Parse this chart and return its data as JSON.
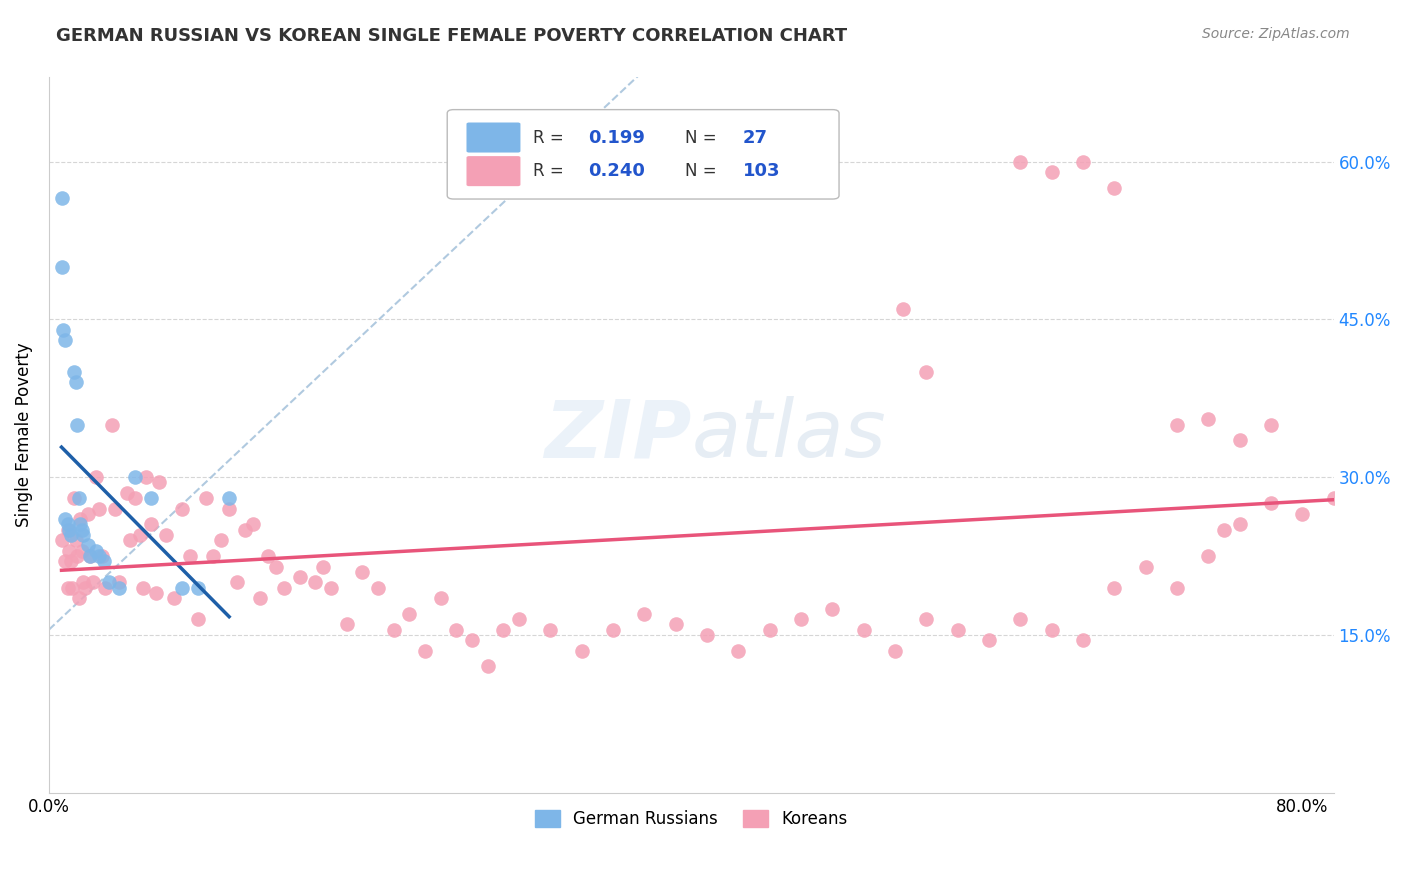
{
  "title": "GERMAN RUSSIAN VS KOREAN SINGLE FEMALE POVERTY CORRELATION CHART",
  "source": "Source: ZipAtlas.com",
  "ylabel": "Single Female Poverty",
  "xlim": [
    0.0,
    0.82
  ],
  "ylim": [
    0.0,
    0.68
  ],
  "yticks": [
    0.15,
    0.3,
    0.45,
    0.6
  ],
  "ytick_labels": [
    "15.0%",
    "30.0%",
    "45.0%",
    "60.0%"
  ],
  "watermark_zip": "ZIP",
  "watermark_atlas": "atlas",
  "blue_color": "#7EB6E8",
  "pink_color": "#F4A0B5",
  "blue_line_color": "#1E5FA8",
  "pink_line_color": "#E8547A",
  "dashed_line_color": "#A8C4DC",
  "legend_r1": "0.199",
  "legend_n1": "27",
  "legend_r2": "0.240",
  "legend_n2": "103",
  "german_russian_x": [
    0.008,
    0.008,
    0.009,
    0.01,
    0.01,
    0.012,
    0.013,
    0.014,
    0.016,
    0.017,
    0.018,
    0.019,
    0.02,
    0.021,
    0.022,
    0.025,
    0.026,
    0.03,
    0.032,
    0.035,
    0.038,
    0.045,
    0.055,
    0.065,
    0.085,
    0.095,
    0.115
  ],
  "german_russian_y": [
    0.565,
    0.5,
    0.44,
    0.43,
    0.26,
    0.255,
    0.25,
    0.245,
    0.4,
    0.39,
    0.35,
    0.28,
    0.255,
    0.25,
    0.245,
    0.235,
    0.225,
    0.23,
    0.225,
    0.22,
    0.2,
    0.195,
    0.3,
    0.28,
    0.195,
    0.195,
    0.28
  ],
  "korean_x": [
    0.008,
    0.01,
    0.012,
    0.012,
    0.013,
    0.014,
    0.015,
    0.016,
    0.017,
    0.018,
    0.019,
    0.02,
    0.021,
    0.022,
    0.023,
    0.025,
    0.026,
    0.028,
    0.03,
    0.032,
    0.034,
    0.036,
    0.04,
    0.042,
    0.045,
    0.05,
    0.052,
    0.055,
    0.058,
    0.06,
    0.062,
    0.065,
    0.068,
    0.07,
    0.075,
    0.08,
    0.085,
    0.09,
    0.095,
    0.1,
    0.105,
    0.11,
    0.115,
    0.12,
    0.125,
    0.13,
    0.135,
    0.14,
    0.145,
    0.15,
    0.16,
    0.17,
    0.175,
    0.18,
    0.19,
    0.2,
    0.21,
    0.22,
    0.23,
    0.24,
    0.25,
    0.26,
    0.27,
    0.28,
    0.29,
    0.3,
    0.32,
    0.34,
    0.36,
    0.38,
    0.4,
    0.42,
    0.44,
    0.46,
    0.48,
    0.5,
    0.52,
    0.54,
    0.56,
    0.58,
    0.6,
    0.62,
    0.64,
    0.66,
    0.68,
    0.7,
    0.72,
    0.74,
    0.76,
    0.78,
    0.545,
    0.56,
    0.62,
    0.64,
    0.66,
    0.68,
    0.72,
    0.74,
    0.76,
    0.78,
    0.8,
    0.82,
    0.75
  ],
  "korean_y": [
    0.24,
    0.22,
    0.25,
    0.195,
    0.23,
    0.22,
    0.195,
    0.28,
    0.24,
    0.225,
    0.185,
    0.26,
    0.23,
    0.2,
    0.195,
    0.265,
    0.225,
    0.2,
    0.3,
    0.27,
    0.225,
    0.195,
    0.35,
    0.27,
    0.2,
    0.285,
    0.24,
    0.28,
    0.245,
    0.195,
    0.3,
    0.255,
    0.19,
    0.295,
    0.245,
    0.185,
    0.27,
    0.225,
    0.165,
    0.28,
    0.225,
    0.24,
    0.27,
    0.2,
    0.25,
    0.255,
    0.185,
    0.225,
    0.215,
    0.195,
    0.205,
    0.2,
    0.215,
    0.195,
    0.16,
    0.21,
    0.195,
    0.155,
    0.17,
    0.135,
    0.185,
    0.155,
    0.145,
    0.12,
    0.155,
    0.165,
    0.155,
    0.135,
    0.155,
    0.17,
    0.16,
    0.15,
    0.135,
    0.155,
    0.165,
    0.175,
    0.155,
    0.135,
    0.165,
    0.155,
    0.145,
    0.165,
    0.155,
    0.145,
    0.195,
    0.215,
    0.195,
    0.225,
    0.255,
    0.275,
    0.46,
    0.4,
    0.6,
    0.59,
    0.6,
    0.575,
    0.35,
    0.355,
    0.335,
    0.35,
    0.265,
    0.28,
    0.25
  ]
}
